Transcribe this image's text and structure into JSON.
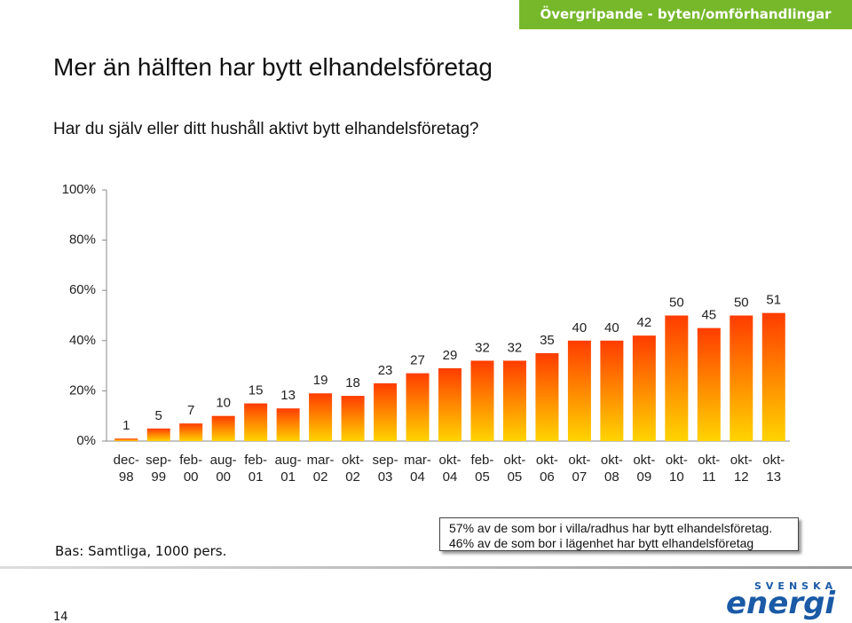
{
  "header_tag": "Övergripande - byten/omförhandlingar",
  "title": "Mer än hälften har bytt elhandelsföretag",
  "subtitle": "Har du själv eller ditt hushåll aktivt bytt elhandelsföretag?",
  "chart_data": {
    "type": "bar",
    "categories": [
      "dec-\n98",
      "sep-\n99",
      "feb-\n00",
      "aug-\n00",
      "feb-\n01",
      "aug-\n01",
      "mar-\n02",
      "okt-\n02",
      "sep-\n03",
      "mar-\n04",
      "okt-\n04",
      "feb-\n05",
      "okt-\n05",
      "okt-\n06",
      "okt-\n07",
      "okt-\n08",
      "okt-\n09",
      "okt-\n10",
      "okt-\n11",
      "okt-\n12",
      "okt-\n13"
    ],
    "values": [
      1,
      5,
      7,
      10,
      15,
      13,
      19,
      18,
      23,
      27,
      29,
      32,
      32,
      35,
      40,
      40,
      42,
      50,
      45,
      50,
      51
    ],
    "color_top": "#ff3c00",
    "color_bottom": "#ffd400",
    "ylim": [
      0,
      100
    ],
    "yticks": [
      {
        "value": 0,
        "label": "0%"
      },
      {
        "value": 20,
        "label": "20%"
      },
      {
        "value": 40,
        "label": "40%"
      },
      {
        "value": 60,
        "label": "60%"
      },
      {
        "value": 80,
        "label": "80%"
      },
      {
        "value": 100,
        "label": "100%"
      }
    ],
    "grid": false
  },
  "base_note": "Bas: Samtliga, 1000 pers.",
  "note_box": {
    "lines": [
      "57% av de som bor i villa/radhus har bytt elhandelsföretag.",
      "46% av de som bor i lägenhet har bytt elhandelsföretag"
    ]
  },
  "page_number": "14",
  "logo": {
    "top": "SVENSKA",
    "bottom": "energi"
  }
}
